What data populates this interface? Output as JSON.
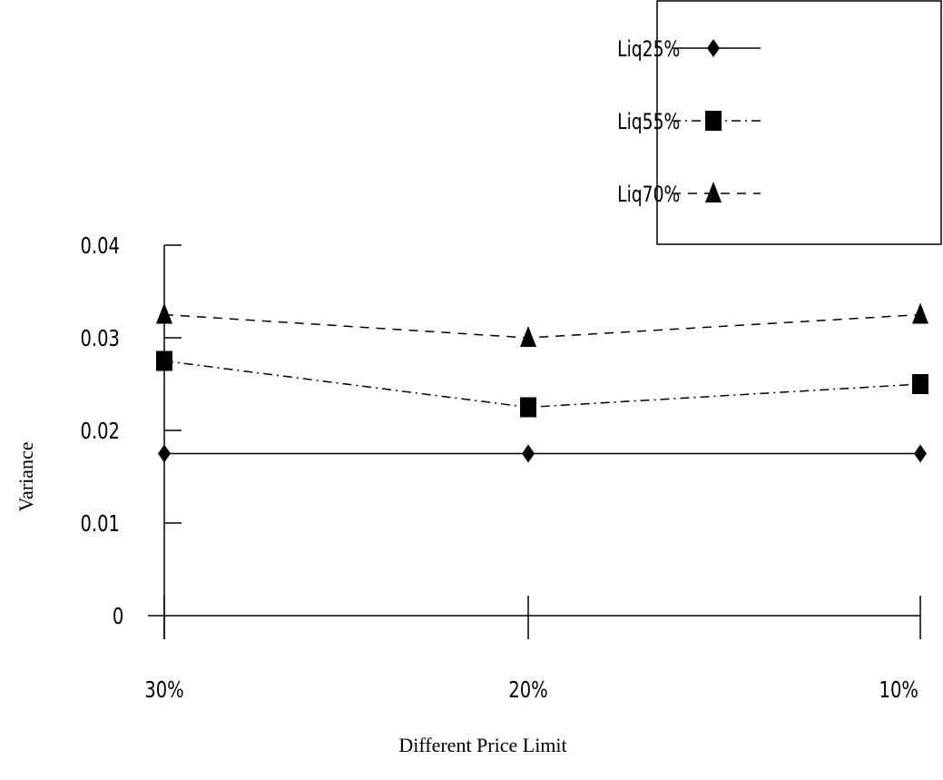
{
  "chart_data": {
    "type": "line",
    "title": "",
    "xlabel": "Different Price Limit",
    "ylabel": "Variance",
    "categories": [
      "30%",
      "20%",
      "10%"
    ],
    "yticks": [
      "0",
      "0.01",
      "0.02",
      "0.03",
      "0.04"
    ],
    "ylim": [
      0,
      0.04
    ],
    "grid": false,
    "legend_position": "top-right",
    "series": [
      {
        "name": "Liq25%",
        "marker": "diamond",
        "line_style": "solid",
        "values": [
          0.0175,
          0.0175,
          0.0175
        ]
      },
      {
        "name": "Liq55%",
        "marker": "square",
        "line_style": "dash-dot",
        "values": [
          0.0275,
          0.0225,
          0.025
        ]
      },
      {
        "name": "Liq70%",
        "marker": "triangle",
        "line_style": "dashed",
        "values": [
          0.0325,
          0.03,
          0.0325
        ]
      }
    ]
  }
}
